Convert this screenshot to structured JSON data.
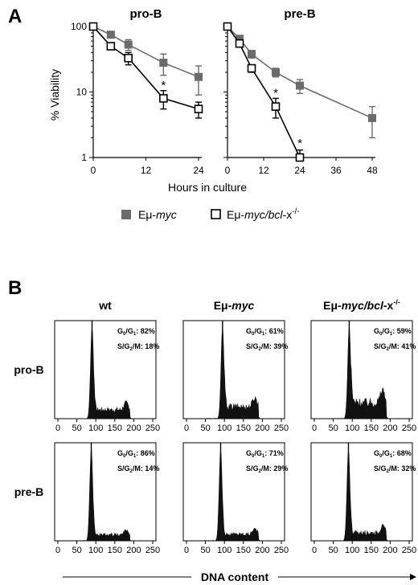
{
  "panel_labels": {
    "a": "A",
    "b": "B"
  },
  "legend": {
    "items": [
      {
        "prefix": "Eμ-",
        "italic": "myc",
        "suffix": "",
        "sup": "",
        "color": "#6b6b6b",
        "marker": "filled-square"
      },
      {
        "prefix": "Eμ-",
        "italic": "myc/bcl",
        "suffix": "-x",
        "sup": "-/-",
        "color": "#000000",
        "marker": "open-square"
      }
    ]
  },
  "colors": {
    "emyc": "#6b6b6b",
    "ko": "#000000",
    "hist_fill": "#111111"
  },
  "shared_xlabel": "Hours in culture",
  "shared_ylabel": "% Viability",
  "histogram_xlabel": "DNA content",
  "chart_data": [
    {
      "type": "line",
      "title": "pro-B",
      "ylabel": "% Viability",
      "yscale": "log",
      "ylim": [
        1,
        100
      ],
      "yticks": [
        "100",
        "10",
        "1"
      ],
      "xlim": [
        0,
        24
      ],
      "xticks": [
        "0",
        "12",
        "24"
      ],
      "series": [
        {
          "name": "Eμ-myc",
          "marker": "filled-square",
          "x": [
            0,
            4,
            8,
            16,
            24
          ],
          "y": [
            100,
            75,
            53,
            28,
            17
          ],
          "err": [
            3,
            8,
            10,
            10,
            8
          ]
        },
        {
          "name": "Eμ-myc/bcl-x-/-",
          "marker": "open-square",
          "x": [
            0,
            4,
            8,
            16,
            24
          ],
          "y": [
            100,
            50,
            33,
            8,
            5.5
          ],
          "err": [
            3,
            5,
            7,
            2.5,
            1.5
          ]
        }
      ],
      "annotations": [
        {
          "text": "*",
          "x": 16,
          "y": 13
        }
      ]
    },
    {
      "type": "line",
      "title": "pre-B",
      "yscale": "log",
      "ylim": [
        1,
        100
      ],
      "xlim": [
        0,
        48
      ],
      "xticks": [
        "0",
        "12",
        "24",
        "36",
        "48"
      ],
      "series": [
        {
          "name": "Eμ-myc",
          "marker": "filled-square",
          "x": [
            0,
            4,
            8,
            16,
            24,
            48
          ],
          "y": [
            100,
            65,
            38,
            20,
            12.5,
            4
          ],
          "err": [
            3,
            6,
            5,
            3,
            3,
            2
          ]
        },
        {
          "name": "Eμ-myc/bcl-x-/-",
          "marker": "open-square",
          "x": [
            0,
            4,
            8,
            16,
            24
          ],
          "y": [
            100,
            55,
            23,
            6,
            1
          ],
          "err": [
            3,
            6,
            3,
            2,
            0.3
          ]
        }
      ],
      "annotations": [
        {
          "text": "*",
          "x": 16,
          "y": 10
        },
        {
          "text": "*",
          "x": 24,
          "y": 1.7
        }
      ]
    },
    {
      "type": "histogram",
      "column_titles": [
        {
          "prefix": "wt",
          "italic": "",
          "suffix": "",
          "sup": ""
        },
        {
          "prefix": "Eμ-",
          "italic": "myc",
          "suffix": "",
          "sup": ""
        },
        {
          "prefix": "Eμ-",
          "italic": "myc/bcl",
          "suffix": "-x",
          "sup": "-/-"
        }
      ],
      "row_titles": [
        "pro-B",
        "pre-B"
      ],
      "xticks": [
        "0",
        "50",
        "100",
        "150",
        "200",
        "250"
      ],
      "xlabel": "DNA content",
      "panels": [
        {
          "row": 0,
          "col": 0,
          "g0g1": "82%",
          "sg2m": "18%",
          "peak": 90,
          "tail": 0.12
        },
        {
          "row": 0,
          "col": 1,
          "g0g1": "61%",
          "sg2m": "39%",
          "peak": 95,
          "tail": 0.16
        },
        {
          "row": 0,
          "col": 2,
          "g0g1": "59%",
          "sg2m": "41%",
          "peak": 92,
          "tail": 0.22
        },
        {
          "row": 1,
          "col": 0,
          "g0g1": "86%",
          "sg2m": "14%",
          "peak": 88,
          "tail": 0.08
        },
        {
          "row": 1,
          "col": 1,
          "g0g1": "71%",
          "sg2m": "29%",
          "peak": 90,
          "tail": 0.09
        },
        {
          "row": 1,
          "col": 2,
          "g0g1": "68%",
          "sg2m": "32%",
          "peak": 90,
          "tail": 0.11
        }
      ]
    }
  ]
}
